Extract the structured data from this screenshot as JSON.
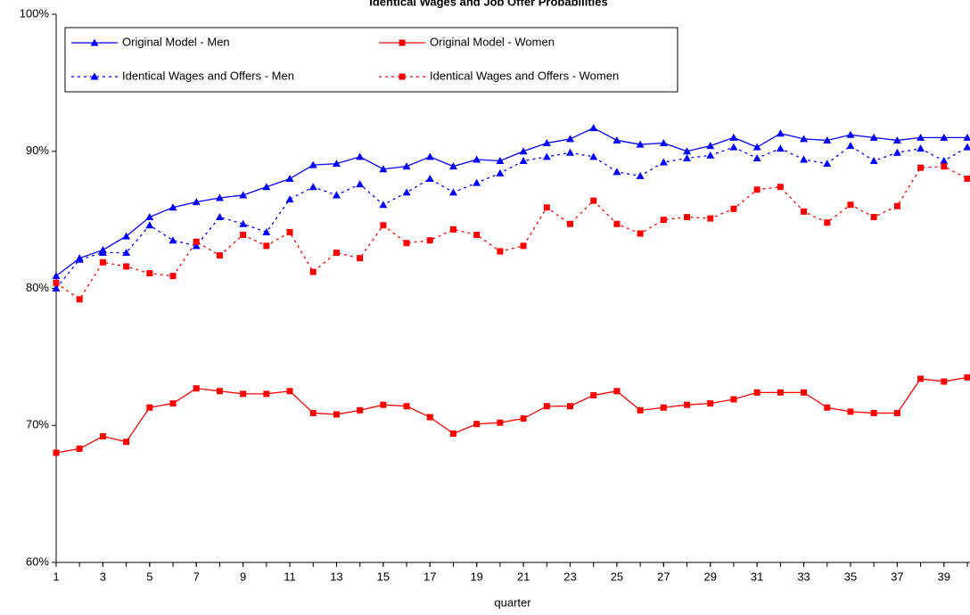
{
  "chart_data": {
    "type": "line",
    "title": "Identical Wages and Job Offer Probabilities",
    "x_label": "quarter",
    "x": [
      1,
      2,
      3,
      4,
      5,
      6,
      7,
      8,
      9,
      10,
      11,
      12,
      13,
      14,
      15,
      16,
      17,
      18,
      19,
      20,
      21,
      22,
      23,
      24,
      25,
      26,
      27,
      28,
      29,
      30,
      31,
      32,
      33,
      34,
      35,
      36,
      37,
      38,
      39,
      40
    ],
    "xlim": [
      1,
      40
    ],
    "xticks": [
      1,
      3,
      5,
      7,
      9,
      11,
      13,
      15,
      17,
      19,
      21,
      23,
      25,
      27,
      29,
      31,
      33,
      35,
      37,
      39
    ],
    "ylim": [
      60,
      100
    ],
    "yticks": [
      {
        "value": 60,
        "label": "60%"
      },
      {
        "value": 70,
        "label": "70%"
      },
      {
        "value": 80,
        "label": "80%"
      },
      {
        "value": 90,
        "label": "90%"
      },
      {
        "value": 100,
        "label": "100%"
      }
    ],
    "grid": false,
    "legend": "upper-left",
    "series": [
      {
        "name": "Original Model - Men",
        "color": "#0000ff",
        "linestyle": "solid",
        "marker": "triangle",
        "values": [
          80.9,
          82.2,
          82.8,
          83.8,
          85.2,
          85.9,
          86.3,
          86.6,
          86.8,
          87.4,
          88.0,
          89.0,
          89.1,
          89.6,
          88.7,
          88.9,
          89.6,
          88.9,
          89.4,
          89.3,
          90.0,
          90.6,
          90.9,
          91.7,
          90.8,
          90.5,
          90.6,
          90.0,
          90.4,
          91.0,
          90.3,
          91.3,
          90.9,
          90.8,
          91.2,
          91.0,
          90.8,
          91.0,
          91.0,
          91.0
        ]
      },
      {
        "name": "Original Model - Women",
        "color": "#ff0000",
        "linestyle": "solid",
        "marker": "square",
        "values": [
          68.0,
          68.3,
          69.2,
          68.8,
          71.3,
          71.6,
          72.7,
          72.5,
          72.3,
          72.3,
          72.5,
          70.9,
          70.8,
          71.1,
          71.5,
          71.4,
          70.6,
          69.4,
          70.1,
          70.2,
          70.5,
          71.4,
          71.4,
          72.2,
          72.5,
          71.1,
          71.3,
          71.5,
          71.6,
          71.9,
          72.4,
          72.4,
          72.4,
          71.3,
          71.0,
          70.9,
          70.9,
          73.4,
          73.2,
          73.5
        ]
      },
      {
        "name": "Identical Wages and Offers - Men",
        "color": "#0000ff",
        "linestyle": "dotted",
        "marker": "triangle",
        "values": [
          80.0,
          82.1,
          82.6,
          82.6,
          84.6,
          83.5,
          83.1,
          85.2,
          84.7,
          84.1,
          86.5,
          87.4,
          86.8,
          87.6,
          86.1,
          87.0,
          88.0,
          87.0,
          87.7,
          88.4,
          89.3,
          89.6,
          89.9,
          89.6,
          88.5,
          88.2,
          89.2,
          89.5,
          89.7,
          90.3,
          89.5,
          90.2,
          89.4,
          89.1,
          90.4,
          89.3,
          89.9,
          90.2,
          89.3,
          90.3
        ]
      },
      {
        "name": "Identical Wages and Offers - Women",
        "color": "#ff0000",
        "linestyle": "dotted",
        "marker": "square",
        "values": [
          80.4,
          79.2,
          81.9,
          81.6,
          81.1,
          80.9,
          83.4,
          82.4,
          83.9,
          83.1,
          84.1,
          81.2,
          82.6,
          82.2,
          84.6,
          83.3,
          83.5,
          84.3,
          83.9,
          82.7,
          83.1,
          85.9,
          84.7,
          86.4,
          84.7,
          84.0,
          85.0,
          85.2,
          85.1,
          85.8,
          87.2,
          87.4,
          85.6,
          84.8,
          86.1,
          85.2,
          86.0,
          88.8,
          88.9,
          88.0
        ]
      }
    ]
  }
}
